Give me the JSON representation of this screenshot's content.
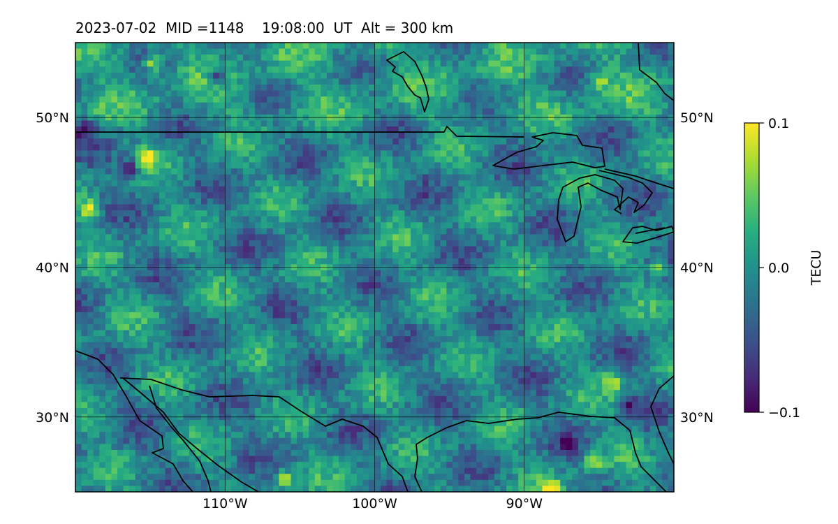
{
  "title": "2023-07-02  MID =1148    19:08:00  UT  Alt = 300 km",
  "chart_data": {
    "type": "heatmap",
    "title": "2023-07-02  MID =1148    19:08:00  UT  Alt = 300 km",
    "projection": "PlateCarree",
    "lon_range": [
      -120,
      -80
    ],
    "lat_range": [
      25,
      55
    ],
    "x_ticks": [
      {
        "value": -110,
        "label": "110°W"
      },
      {
        "value": -100,
        "label": "100°W"
      },
      {
        "value": -90,
        "label": "90°W"
      }
    ],
    "y_ticks": [
      {
        "value": 30,
        "label": "30°N"
      },
      {
        "value": 40,
        "label": "40°N"
      },
      {
        "value": 50,
        "label": "50°N"
      }
    ],
    "gridlines": true,
    "coastlines": true,
    "colormap": "viridis",
    "colorbar": {
      "label": "TECU",
      "vmin": -0.1,
      "vmax": 0.1,
      "ticks": [
        {
          "value": 0.1,
          "label": "0.1"
        },
        {
          "value": 0.0,
          "label": "0.0"
        },
        {
          "value": -0.1,
          "label": "−0.1"
        }
      ]
    },
    "field_mean_tecu": -0.01,
    "notable_values": [
      {
        "lon": -114.8,
        "lat": 53.6,
        "value": 0.09
      },
      {
        "lon": -110.5,
        "lat": 52.8,
        "value": -0.1
      },
      {
        "lon": -119.4,
        "lat": 49.2,
        "value": -0.1
      },
      {
        "lon": -116.4,
        "lat": 46.6,
        "value": -0.1
      },
      {
        "lon": -115.2,
        "lat": 47.3,
        "value": 0.1
      },
      {
        "lon": -119.0,
        "lat": 43.8,
        "value": 0.1
      },
      {
        "lon": -106.0,
        "lat": 25.8,
        "value": 0.08
      },
      {
        "lon": -88.3,
        "lat": 25.2,
        "value": 0.1
      },
      {
        "lon": -84.2,
        "lat": 32.3,
        "value": 0.08
      },
      {
        "lon": -85.4,
        "lat": 27.0,
        "value": 0.07
      },
      {
        "lon": -81.0,
        "lat": 40.0,
        "value": 0.08
      },
      {
        "lon": -85.0,
        "lat": 52.5,
        "value": 0.06
      },
      {
        "lon": -83.0,
        "lat": 30.8,
        "value": -0.08
      },
      {
        "lon": -87.0,
        "lat": 28.2,
        "value": -0.08
      }
    ]
  }
}
